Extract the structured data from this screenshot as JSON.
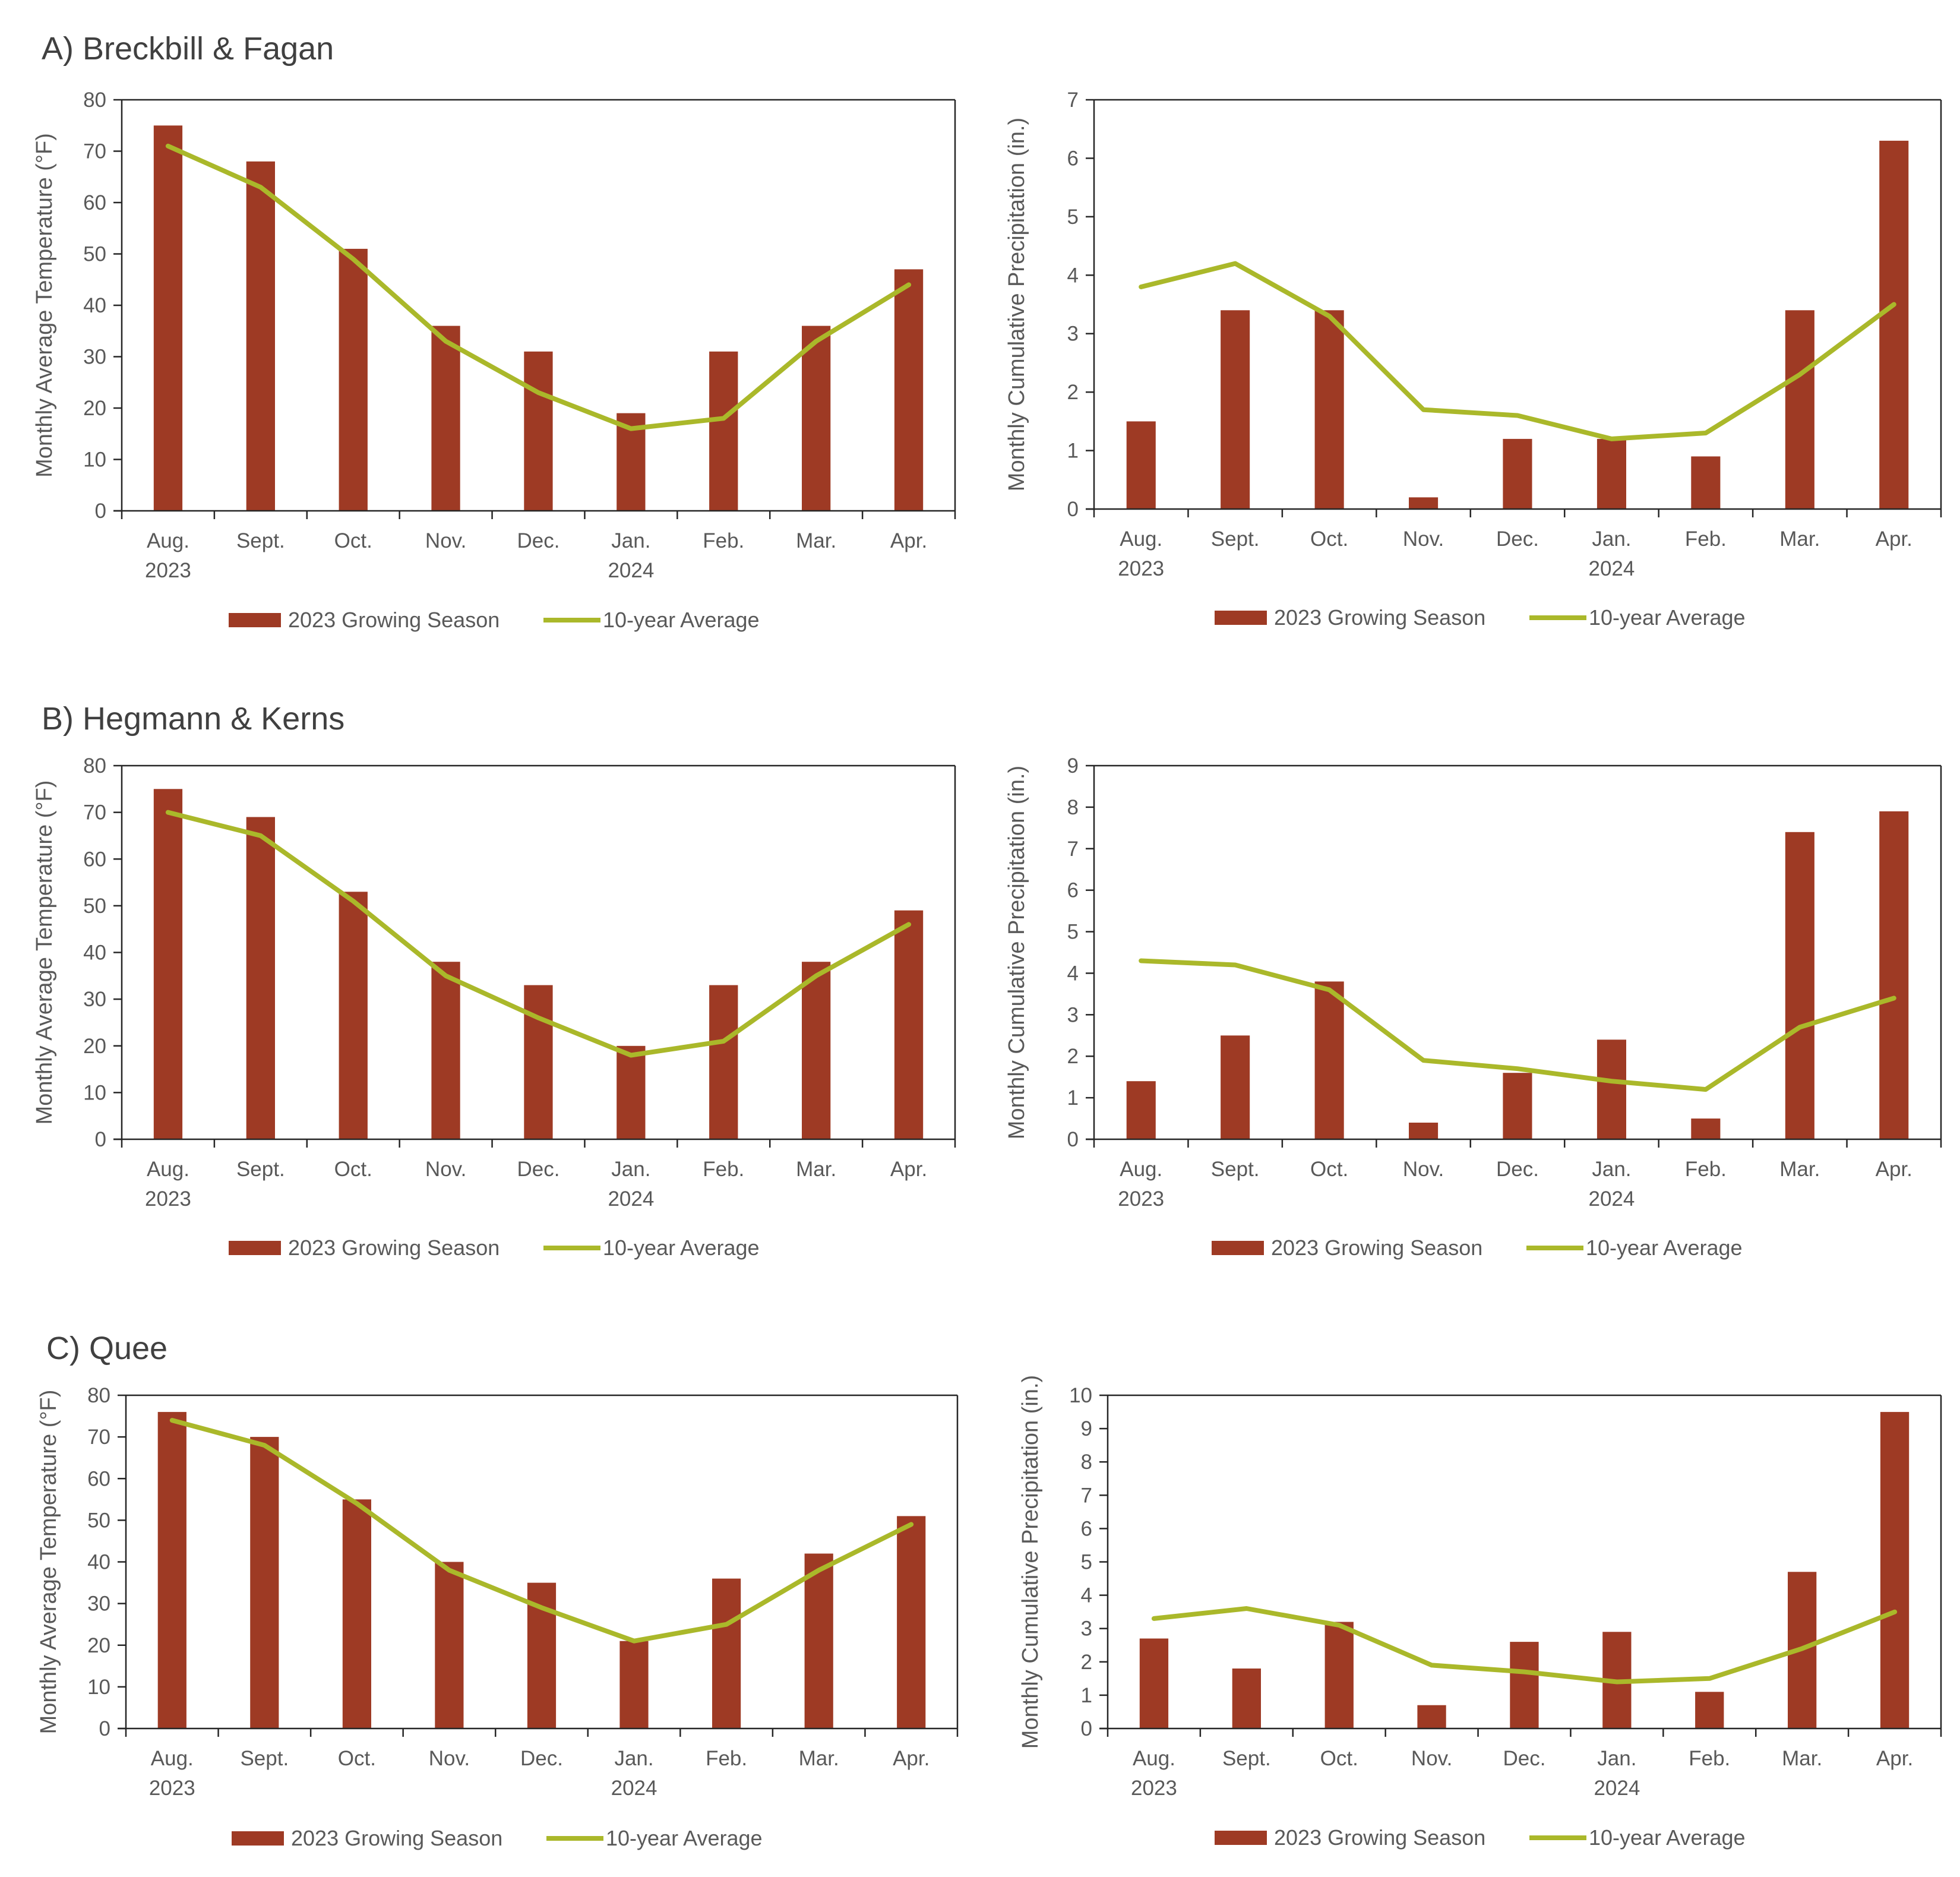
{
  "colors": {
    "bar": "#9e3a24",
    "line": "#aab82a",
    "axis": "#262626",
    "text": "#595959"
  },
  "section_titles": [
    "A) Breckbill & Fagan",
    "B) Hegmann & Kerns",
    "C) Quee"
  ],
  "legend": {
    "bar_label": "2023 Growing Season",
    "line_label": "10-year Average"
  },
  "chart_data": [
    {
      "type": "bar",
      "title": "A) Breckbill & Fagan",
      "categories": [
        "Aug.",
        "Sept.",
        "Oct.",
        "Nov.",
        "Dec.",
        "Jan.",
        "Feb.",
        "Mar.",
        "Apr."
      ],
      "category_years": [
        "2023",
        "",
        "",
        "",
        "",
        "2024",
        "",
        "",
        ""
      ],
      "ylabel": "Monthly Average Temperature (°F)",
      "ylim": [
        0,
        80
      ],
      "yticks": [
        0,
        10,
        20,
        30,
        40,
        50,
        60,
        70,
        80
      ],
      "series": [
        {
          "name": "2023 Growing Season",
          "kind": "bar",
          "values": [
            75,
            68,
            51,
            36,
            31,
            19,
            31,
            36,
            47
          ]
        },
        {
          "name": "10-year Average",
          "kind": "line",
          "values": [
            71,
            63,
            49,
            33,
            23,
            16,
            18,
            33,
            44
          ]
        }
      ],
      "legend_position": "bottom"
    },
    {
      "type": "bar",
      "categories": [
        "Aug.",
        "Sept.",
        "Oct.",
        "Nov.",
        "Dec.",
        "Jan.",
        "Feb.",
        "Mar.",
        "Apr."
      ],
      "category_years": [
        "2023",
        "",
        "",
        "",
        "",
        "2024",
        "",
        "",
        ""
      ],
      "ylabel": "Monthly Cumulative Precipitation (in.)",
      "ylim": [
        0,
        7
      ],
      "yticks": [
        0,
        1,
        2,
        3,
        4,
        5,
        6,
        7
      ],
      "series": [
        {
          "name": "2023 Growing Season",
          "kind": "bar",
          "values": [
            1.5,
            3.4,
            3.4,
            0.2,
            1.2,
            1.2,
            0.9,
            3.4,
            6.3
          ]
        },
        {
          "name": "10-year Average",
          "kind": "line",
          "values": [
            3.8,
            4.2,
            3.3,
            1.7,
            1.6,
            1.2,
            1.3,
            2.3,
            3.5
          ]
        }
      ],
      "legend_position": "bottom"
    },
    {
      "type": "bar",
      "title": "B) Hegmann & Kerns",
      "categories": [
        "Aug.",
        "Sept.",
        "Oct.",
        "Nov.",
        "Dec.",
        "Jan.",
        "Feb.",
        "Mar.",
        "Apr."
      ],
      "category_years": [
        "2023",
        "",
        "",
        "",
        "",
        "2024",
        "",
        "",
        ""
      ],
      "ylabel": "Monthly Average Temperature (°F)",
      "ylim": [
        0,
        80
      ],
      "yticks": [
        0,
        10,
        20,
        30,
        40,
        50,
        60,
        70,
        80
      ],
      "series": [
        {
          "name": "2023 Growing Season",
          "kind": "bar",
          "values": [
            75,
            69,
            53,
            38,
            33,
            20,
            33,
            38,
            49
          ]
        },
        {
          "name": "10-year Average",
          "kind": "line",
          "values": [
            70,
            65,
            51,
            35,
            26,
            18,
            21,
            35,
            46
          ]
        }
      ],
      "legend_position": "bottom"
    },
    {
      "type": "bar",
      "categories": [
        "Aug.",
        "Sept.",
        "Oct.",
        "Nov.",
        "Dec.",
        "Jan.",
        "Feb.",
        "Mar.",
        "Apr."
      ],
      "category_years": [
        "2023",
        "",
        "",
        "",
        "",
        "2024",
        "",
        "",
        ""
      ],
      "ylabel": "Monthly Cumulative Precipitation (in.)",
      "ylim": [
        0,
        9
      ],
      "yticks": [
        0,
        1,
        2,
        3,
        4,
        5,
        6,
        7,
        8,
        9
      ],
      "series": [
        {
          "name": "2023 Growing Season",
          "kind": "bar",
          "values": [
            1.4,
            2.5,
            3.8,
            0.4,
            1.6,
            2.4,
            0.5,
            7.4,
            7.9
          ]
        },
        {
          "name": "10-year Average",
          "kind": "line",
          "values": [
            4.3,
            4.2,
            3.6,
            1.9,
            1.7,
            1.4,
            1.2,
            2.7,
            3.4
          ]
        }
      ],
      "legend_position": "bottom"
    },
    {
      "type": "bar",
      "title": "C) Quee",
      "categories": [
        "Aug.",
        "Sept.",
        "Oct.",
        "Nov.",
        "Dec.",
        "Jan.",
        "Feb.",
        "Mar.",
        "Apr."
      ],
      "category_years": [
        "2023",
        "",
        "",
        "",
        "",
        "2024",
        "",
        "",
        ""
      ],
      "ylabel": "Monthly Average Temperature (°F)",
      "ylim": [
        0,
        80
      ],
      "yticks": [
        0,
        10,
        20,
        30,
        40,
        50,
        60,
        70,
        80
      ],
      "series": [
        {
          "name": "2023 Growing Season",
          "kind": "bar",
          "values": [
            76,
            70,
            55,
            40,
            35,
            21,
            36,
            42,
            51
          ]
        },
        {
          "name": "10-year Average",
          "kind": "line",
          "values": [
            74,
            68,
            54,
            38,
            29,
            21,
            25,
            38,
            49
          ]
        }
      ],
      "legend_position": "bottom"
    },
    {
      "type": "bar",
      "categories": [
        "Aug.",
        "Sept.",
        "Oct.",
        "Nov.",
        "Dec.",
        "Jan.",
        "Feb.",
        "Mar.",
        "Apr."
      ],
      "category_years": [
        "2023",
        "",
        "",
        "",
        "",
        "2024",
        "",
        "",
        ""
      ],
      "ylabel": "Monthly Cumulative Precipitation (in.)",
      "ylim": [
        0,
        10
      ],
      "yticks": [
        0,
        1,
        2,
        3,
        4,
        5,
        6,
        7,
        8,
        9,
        10
      ],
      "series": [
        {
          "name": "2023 Growing Season",
          "kind": "bar",
          "values": [
            2.7,
            1.8,
            3.2,
            0.7,
            2.6,
            2.9,
            1.1,
            4.7,
            9.5
          ]
        },
        {
          "name": "10-year Average",
          "kind": "line",
          "values": [
            3.3,
            3.6,
            3.1,
            1.9,
            1.7,
            1.4,
            1.5,
            2.4,
            3.5
          ]
        }
      ],
      "legend_position": "bottom"
    }
  ]
}
